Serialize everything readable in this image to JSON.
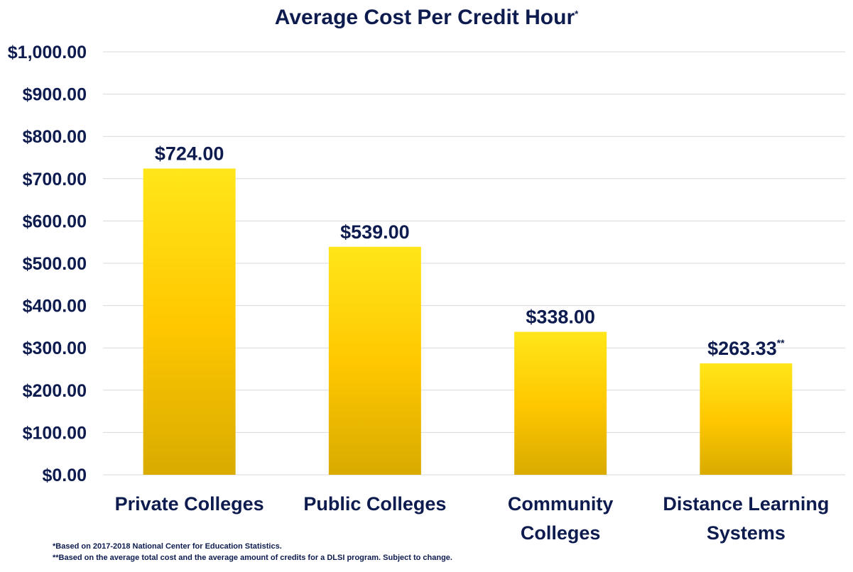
{
  "chart_data": {
    "type": "bar",
    "title": "Average Cost Per Credit Hour",
    "title_marker": "*",
    "categories": [
      "Private Colleges",
      "Public Colleges",
      "Community Colleges",
      "Distance Learning Systems"
    ],
    "category_lines": [
      [
        "Private Colleges"
      ],
      [
        "Public Colleges"
      ],
      [
        "Community",
        "Colleges"
      ],
      [
        "Distance Learning",
        "Systems"
      ]
    ],
    "values": [
      724,
      539,
      338,
      263.33
    ],
    "value_labels": [
      "$724.00",
      "$539.00",
      "$338.00",
      "$263.33"
    ],
    "value_markers": [
      "",
      "",
      "",
      "**"
    ],
    "yticks": [
      "$0.00",
      "$100.00",
      "$200.00",
      "$300.00",
      "$400.00",
      "$500.00",
      "$600.00",
      "$700.00",
      "$800.00",
      "$900.00",
      "$1,000.00"
    ],
    "ylim": [
      0,
      1000
    ],
    "grid": true,
    "xlabel": "",
    "ylabel": ""
  },
  "colors": {
    "bar_top": "#ffe61a",
    "bar_mid": "#ffc800",
    "bar_bottom": "#d9ab00",
    "text": "#0d1b4f",
    "grid": "#d9d9d9"
  },
  "footnotes": [
    "*Based on 2017-2018 National Center for Education Statistics.",
    "**Based on the average total cost and the average amount of credits for a DLSI program. Subject to change."
  ]
}
